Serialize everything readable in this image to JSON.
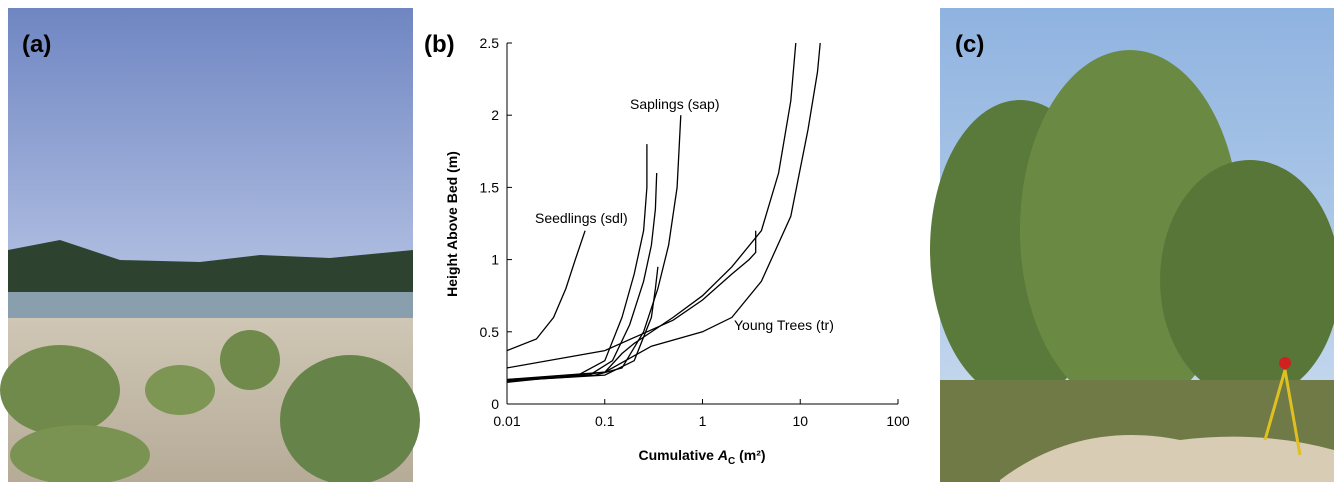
{
  "panels": {
    "a": "(a)",
    "c": "(c)"
  },
  "chart_data": {
    "type": "line",
    "panel_label": "(b)",
    "xlabel": [
      "Cumulative",
      "A",
      "C",
      "(m²)"
    ],
    "ylabel": "Height Above Bed (m)",
    "xlim": [
      0.01,
      100
    ],
    "xticks": [
      0.01,
      0.1,
      1,
      10,
      100
    ],
    "xscale": "log",
    "ylim": [
      0,
      2.5
    ],
    "yticks": [
      0,
      0.5,
      1,
      1.5,
      2,
      2.5
    ],
    "annotations": [
      "Seedlings (sdl)",
      "Saplings (sap)",
      "Young Trees (tr)"
    ],
    "series": [
      {
        "color": "#000000",
        "x": [
          0.01,
          0.02,
          0.03,
          0.04,
          0.05,
          0.063
        ],
        "values": [
          0.37,
          0.45,
          0.6,
          0.8,
          1.0,
          1.2
        ]
      },
      {
        "color": "#000000",
        "x": [
          0.01,
          0.05,
          0.1,
          0.15,
          0.2,
          0.25,
          0.27,
          0.27
        ],
        "values": [
          0.16,
          0.19,
          0.3,
          0.6,
          0.9,
          1.2,
          1.5,
          1.8
        ]
      },
      {
        "color": "#000000",
        "x": [
          0.01,
          0.07,
          0.12,
          0.18,
          0.25,
          0.3,
          0.33,
          0.34
        ],
        "values": [
          0.16,
          0.2,
          0.3,
          0.55,
          0.85,
          1.1,
          1.35,
          1.6
        ]
      },
      {
        "color": "#000000",
        "x": [
          0.01,
          0.08,
          0.15,
          0.25,
          0.35,
          0.45,
          0.55,
          0.6
        ],
        "values": [
          0.17,
          0.2,
          0.25,
          0.5,
          0.8,
          1.1,
          1.5,
          2.0
        ]
      },
      {
        "color": "#000000",
        "x": [
          0.01,
          0.1,
          0.2,
          0.3,
          0.33,
          0.35
        ],
        "values": [
          0.16,
          0.2,
          0.3,
          0.6,
          0.8,
          0.95
        ]
      },
      {
        "color": "#000000",
        "x": [
          0.01,
          0.1,
          0.5,
          1,
          2,
          3,
          3.5,
          3.5
        ],
        "values": [
          0.25,
          0.37,
          0.58,
          0.72,
          0.9,
          1.0,
          1.05,
          1.2
        ]
      },
      {
        "color": "#000000",
        "x": [
          0.01,
          0.1,
          0.15,
          0.2,
          0.5,
          1,
          2,
          4,
          6,
          8,
          9
        ],
        "values": [
          0.15,
          0.22,
          0.35,
          0.42,
          0.6,
          0.75,
          0.95,
          1.2,
          1.6,
          2.1,
          2.5
        ]
      },
      {
        "color": "#000000",
        "x": [
          0.01,
          0.1,
          0.3,
          1,
          2,
          4,
          8,
          12,
          15,
          16
        ],
        "values": [
          0.17,
          0.22,
          0.4,
          0.5,
          0.6,
          0.85,
          1.3,
          1.9,
          2.3,
          2.5
        ]
      }
    ]
  }
}
